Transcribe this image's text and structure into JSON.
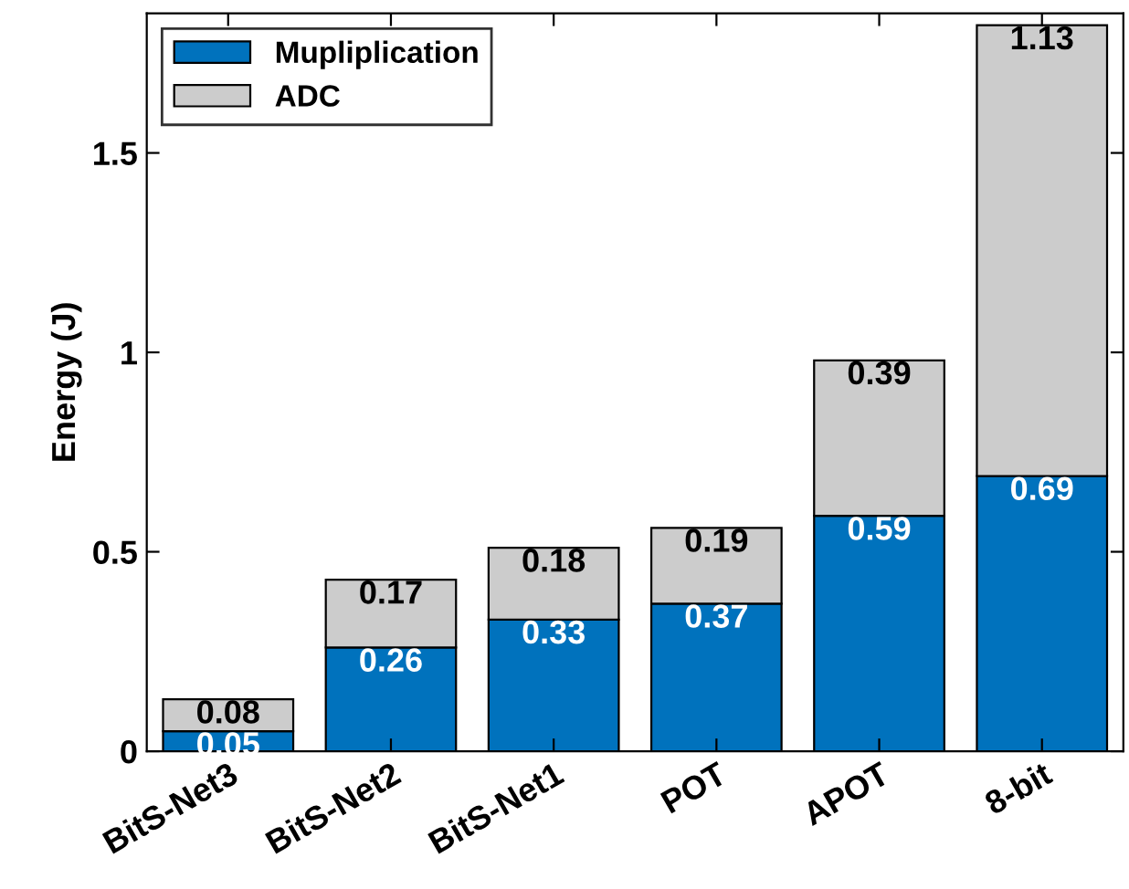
{
  "chart_data": {
    "type": "bar",
    "ylabel": "Energy (J)",
    "stacked": true,
    "data_labels": true,
    "legend": "top left",
    "grid": false,
    "categories": [
      "BitS-Net3",
      "BitS-Net2",
      "BitS-Net1",
      "POT",
      "APOT",
      "8-bit"
    ],
    "series": [
      {
        "name": "Mupliplication",
        "color": "#0072bd",
        "values": [
          0.05,
          0.26,
          0.33,
          0.37,
          0.59,
          0.69
        ]
      },
      {
        "name": "ADC",
        "color": "#cccccc",
        "values": [
          0.08,
          0.17,
          0.18,
          0.19,
          0.39,
          1.13
        ]
      }
    ],
    "ylim": [
      0,
      1.85
    ],
    "yticks": [
      0,
      0.5,
      1,
      1.5
    ]
  }
}
